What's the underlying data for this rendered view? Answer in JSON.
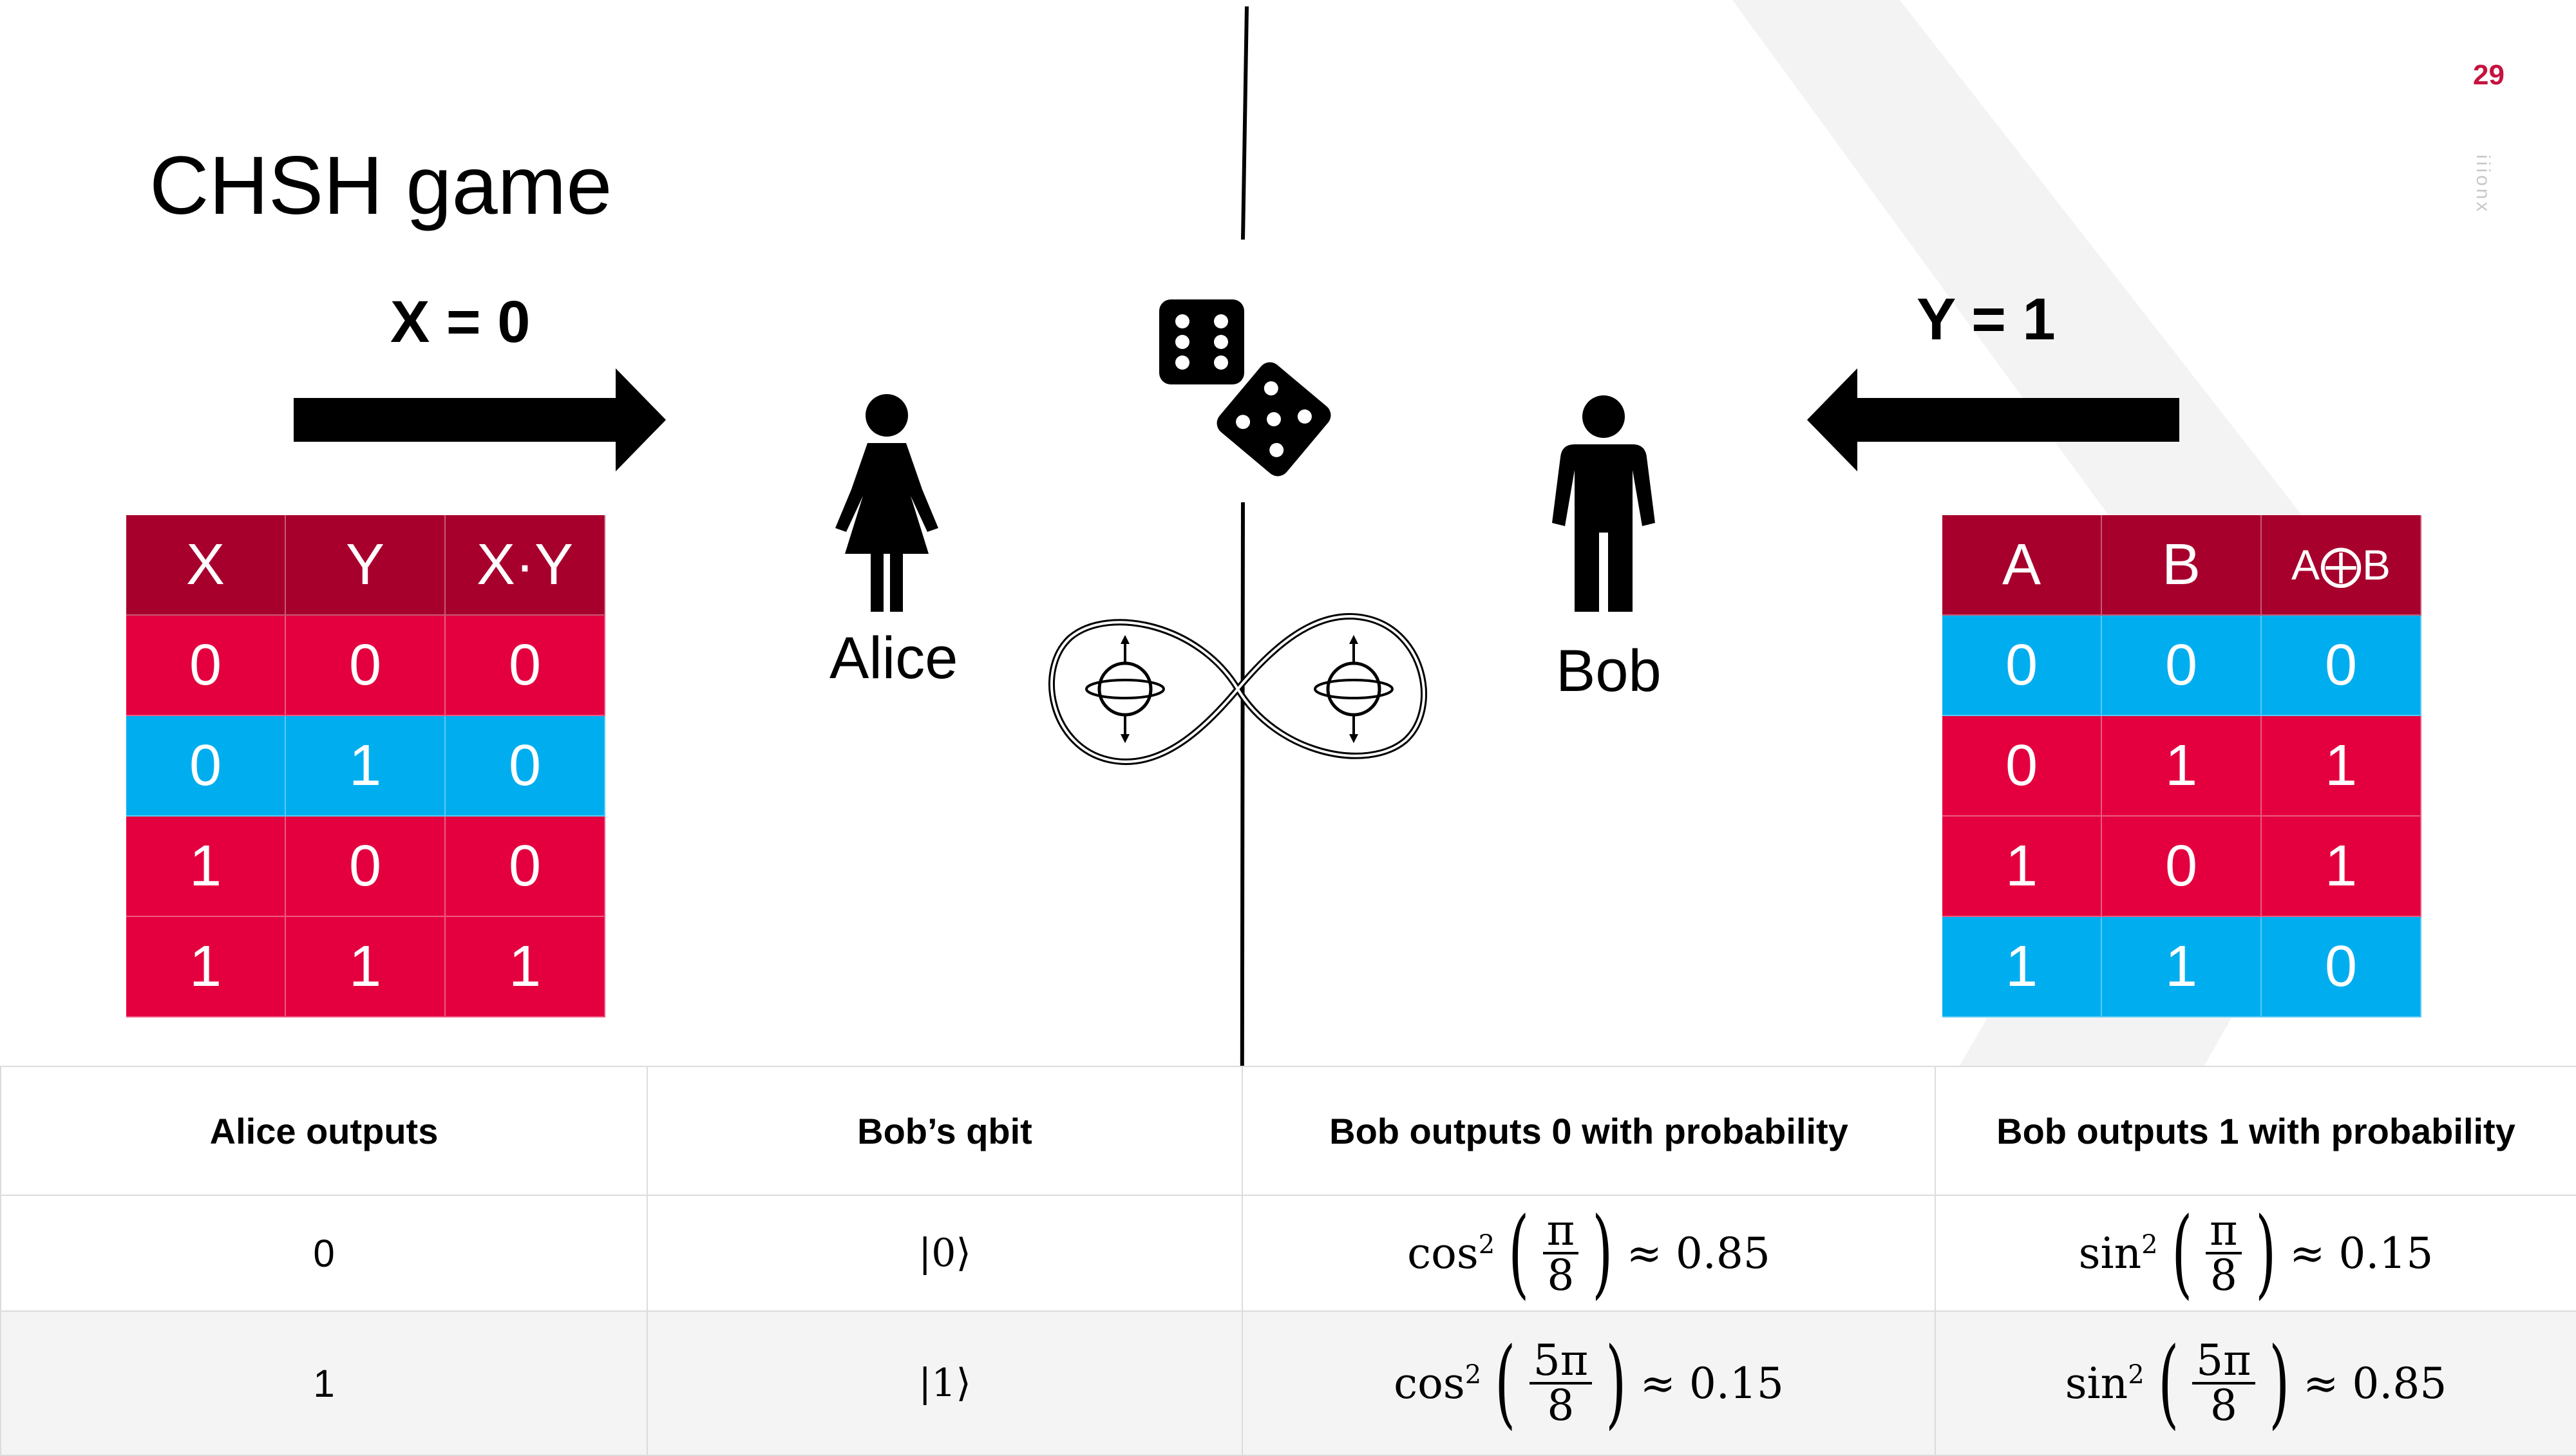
{
  "page_number": "29",
  "brand": "iiionx",
  "title": "CHSH game",
  "alice": {
    "input_label": "X = 0",
    "name": "Alice"
  },
  "bob": {
    "input_label": "Y = 1",
    "name": "Bob"
  },
  "left_table": {
    "headers": [
      "X",
      "Y",
      "X·Y"
    ],
    "rows": [
      [
        "0",
        "0",
        "0"
      ],
      [
        "0",
        "1",
        "0"
      ],
      [
        "1",
        "0",
        "0"
      ],
      [
        "1",
        "1",
        "1"
      ]
    ],
    "row_colors": [
      "red",
      "blue",
      "red",
      "red"
    ]
  },
  "right_table": {
    "headers": [
      "A",
      "B",
      "A⨁B"
    ],
    "rows": [
      [
        "0",
        "0",
        "0"
      ],
      [
        "0",
        "1",
        "1"
      ],
      [
        "1",
        "0",
        "1"
      ],
      [
        "1",
        "1",
        "0"
      ]
    ],
    "row_colors": [
      "blue",
      "red",
      "red",
      "blue"
    ]
  },
  "outcomes_table": {
    "headers": [
      "Alice outputs",
      "Bob’s qbit",
      "Bob outputs 0 with probability",
      "Bob outputs 1 with probability"
    ],
    "rows": [
      {
        "alice": "0",
        "qbit": "|0⟩",
        "p0": {
          "fn": "cos",
          "num": "π",
          "den": "8",
          "approx": "≈ 0.85"
        },
        "p1": {
          "fn": "sin",
          "num": "π",
          "den": "8",
          "approx": "≈ 0.15"
        }
      },
      {
        "alice": "1",
        "qbit": "|1⟩",
        "p0": {
          "fn": "cos",
          "num": "5π",
          "den": "8",
          "approx": "≈ 0.15"
        },
        "p1": {
          "fn": "sin",
          "num": "5π",
          "den": "8",
          "approx": "≈ 0.85"
        }
      }
    ]
  },
  "colors": {
    "header": "#a8002c",
    "red": "#e4003f",
    "blue": "#00aeef",
    "accent": "#c6123f"
  },
  "icons": [
    "arrow-right-icon",
    "arrow-left-icon",
    "dice-icon",
    "woman-icon",
    "man-icon",
    "entangled-qubits-icon"
  ]
}
